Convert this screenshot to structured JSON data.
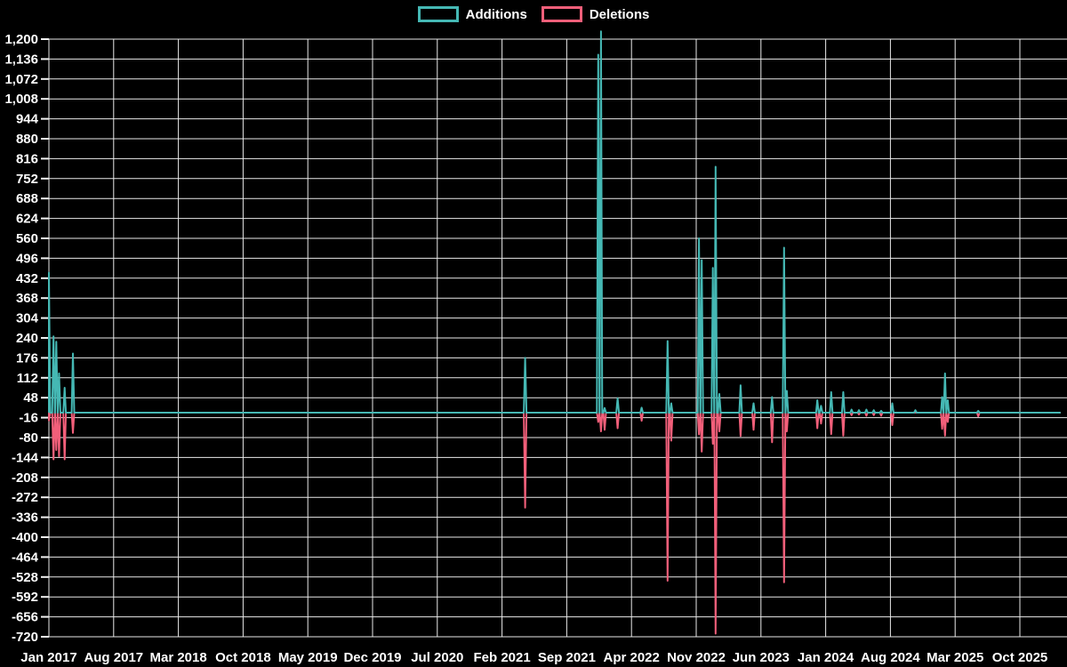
{
  "legend": {
    "items": [
      {
        "label": "Additions",
        "color": "#45b8b4"
      },
      {
        "label": "Deletions",
        "color": "#f25f7a"
      }
    ]
  },
  "axes": {
    "y_tick_labels": [
      "1,200",
      "1,136",
      "1,072",
      "1,008",
      "944",
      "880",
      "816",
      "752",
      "688",
      "624",
      "560",
      "496",
      "432",
      "368",
      "304",
      "240",
      "176",
      "112",
      "48",
      "-16",
      "-80",
      "-144",
      "-208",
      "-272",
      "-336",
      "-400",
      "-464",
      "-528",
      "-592",
      "-656",
      "-720"
    ],
    "x_tick_labels": [
      "Jan 2017",
      "Aug 2017",
      "Mar 2018",
      "Oct 2018",
      "May 2019",
      "Dec 2019",
      "Jul 2020",
      "Feb 2021",
      "Sep 2021",
      "Apr 2022",
      "Nov 2022",
      "Jun 2023",
      "Jan 2024",
      "Aug 2024",
      "Mar 2025",
      "Oct 2025"
    ]
  },
  "chart_data": {
    "type": "line",
    "title": "",
    "xlabel": "",
    "ylabel": "",
    "ylim": [
      -720,
      1200
    ],
    "y_tick_step": 64,
    "x_start": "Jan 2017",
    "x_end": "Oct 2025",
    "x_tick_interval_months": 7,
    "grid": true,
    "legend_position": "top-center",
    "background": "#000000",
    "baseline_value": 0,
    "x_end_month": 109.4,
    "colors": {
      "additions": "#45b8b4",
      "deletions": "#f25f7a",
      "grid": "#e9e9e9",
      "text": "#ffffff"
    },
    "series_names": [
      "Additions",
      "Deletions"
    ],
    "events": [
      {
        "t": 0.0,
        "date": "2017-01",
        "additions": 450,
        "deletions": -25
      },
      {
        "t": 0.5,
        "date": "2017-01",
        "additions": 245,
        "deletions": -150
      },
      {
        "t": 0.8,
        "date": "2017-01",
        "additions": 228,
        "deletions": -120
      },
      {
        "t": 1.1,
        "date": "2017-02",
        "additions": 126,
        "deletions": -140
      },
      {
        "t": 1.7,
        "date": "2017-02",
        "additions": 80,
        "deletions": -150
      },
      {
        "t": 2.6,
        "date": "2017-03",
        "additions": 190,
        "deletions": -65
      },
      {
        "t": 51.5,
        "date": "2021-04",
        "additions": 176,
        "deletions": -305
      },
      {
        "t": 59.4,
        "date": "2021-12",
        "additions": 1150,
        "deletions": -30
      },
      {
        "t": 59.7,
        "date": "2021-12",
        "additions": 1225,
        "deletions": -60
      },
      {
        "t": 60.1,
        "date": "2022-01",
        "additions": 15,
        "deletions": -55
      },
      {
        "t": 61.5,
        "date": "2022-02",
        "additions": 46,
        "deletions": -50
      },
      {
        "t": 64.1,
        "date": "2022-05",
        "additions": 16,
        "deletions": -26
      },
      {
        "t": 66.9,
        "date": "2022-08",
        "additions": 230,
        "deletions": -540
      },
      {
        "t": 67.3,
        "date": "2022-08",
        "additions": 30,
        "deletions": -90
      },
      {
        "t": 70.3,
        "date": "2022-11",
        "additions": 560,
        "deletions": -70
      },
      {
        "t": 70.6,
        "date": "2022-11",
        "additions": 490,
        "deletions": -125
      },
      {
        "t": 71.8,
        "date": "2022-12",
        "additions": 465,
        "deletions": -100
      },
      {
        "t": 72.1,
        "date": "2023-01",
        "additions": 790,
        "deletions": -710
      },
      {
        "t": 72.5,
        "date": "2023-01",
        "additions": 60,
        "deletions": -60
      },
      {
        "t": 74.8,
        "date": "2023-03",
        "additions": 88,
        "deletions": -75
      },
      {
        "t": 76.2,
        "date": "2023-05",
        "additions": 30,
        "deletions": -55
      },
      {
        "t": 78.2,
        "date": "2023-07",
        "additions": 50,
        "deletions": -95
      },
      {
        "t": 79.5,
        "date": "2023-08",
        "additions": 530,
        "deletions": -545
      },
      {
        "t": 79.8,
        "date": "2023-09",
        "additions": 70,
        "deletions": -60
      },
      {
        "t": 83.1,
        "date": "2023-12",
        "additions": 40,
        "deletions": -50
      },
      {
        "t": 83.5,
        "date": "2023-12",
        "additions": 22,
        "deletions": -35
      },
      {
        "t": 84.6,
        "date": "2024-01",
        "additions": 66,
        "deletions": -69
      },
      {
        "t": 85.9,
        "date": "2024-02",
        "additions": 66,
        "deletions": -74
      },
      {
        "t": 86.8,
        "date": "2024-03",
        "additions": 10,
        "deletions": -8
      },
      {
        "t": 87.6,
        "date": "2024-04",
        "additions": 8,
        "deletions": -6
      },
      {
        "t": 88.4,
        "date": "2024-05",
        "additions": 10,
        "deletions": -10
      },
      {
        "t": 89.2,
        "date": "2024-06",
        "additions": 8,
        "deletions": -8
      },
      {
        "t": 90.0,
        "date": "2024-07",
        "additions": 6,
        "deletions": -10
      },
      {
        "t": 91.2,
        "date": "2024-08",
        "additions": 30,
        "deletions": -40
      },
      {
        "t": 93.7,
        "date": "2024-10",
        "additions": 8,
        "deletions": 0
      },
      {
        "t": 96.6,
        "date": "2025-02",
        "additions": 50,
        "deletions": -52
      },
      {
        "t": 96.9,
        "date": "2025-03",
        "additions": 126,
        "deletions": -74
      },
      {
        "t": 97.2,
        "date": "2025-03",
        "additions": 40,
        "deletions": -30
      },
      {
        "t": 100.5,
        "date": "2025-05",
        "additions": 6,
        "deletions": -12
      }
    ]
  }
}
